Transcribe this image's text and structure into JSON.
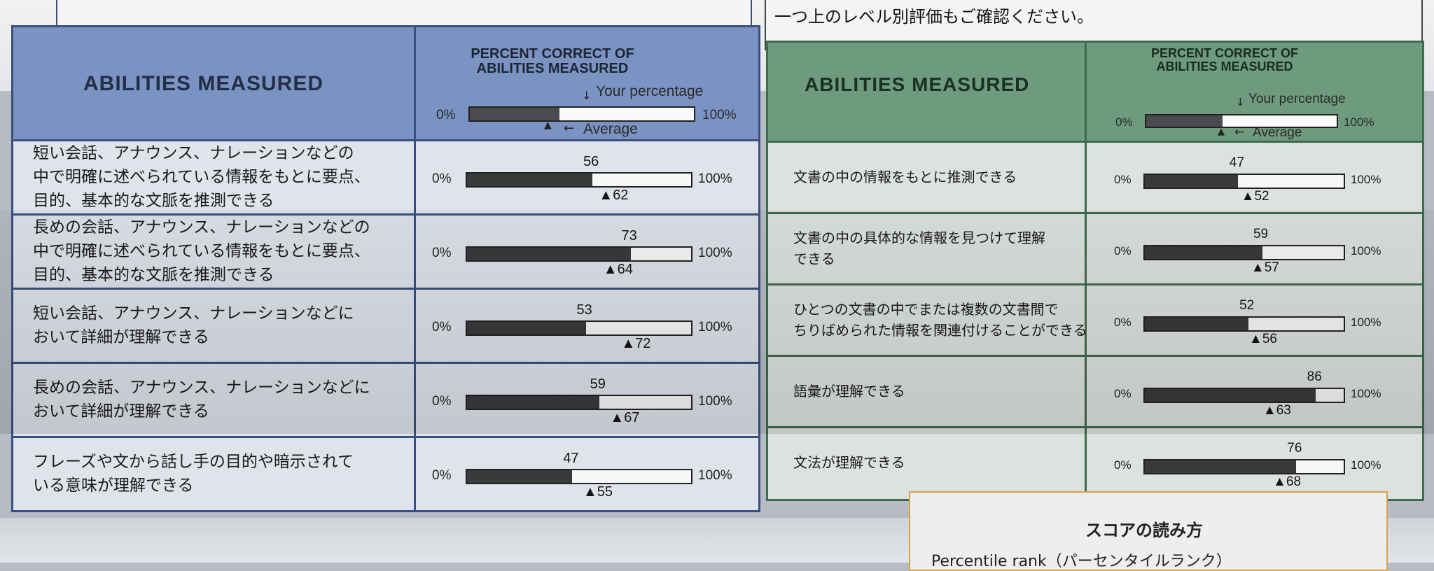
{
  "notice": "一つ上のレベル別評価もご確認ください。",
  "legend": {
    "zero": "0%",
    "hundred": "100%",
    "your_percentage": "Your percentage",
    "average": "Average"
  },
  "left": {
    "abilities_title": "ABILITIES MEASURED",
    "pct_title_1": "PERCENT CORRECT OF",
    "pct_title_2": "ABILITIES MEASURED",
    "rows": [
      {
        "lines": [
          "短い会話、アナウンス、ナレーションなどの",
          "中で明確に述べられている情報をもとに要点、",
          "目的、基本的な文脈を推測できる"
        ],
        "yours": 56,
        "average": 62
      },
      {
        "lines": [
          "長めの会話、アナウンス、ナレーションなどの",
          "中で明確に述べられている情報をもとに要点、",
          "目的、基本的な文脈を推測できる"
        ],
        "yours": 73,
        "average": 64
      },
      {
        "lines": [
          "短い会話、アナウンス、ナレーションなどに",
          "おいて詳細が理解できる"
        ],
        "yours": 53,
        "average": 72
      },
      {
        "lines": [
          "長めの会話、アナウンス、ナレーションなどに",
          "おいて詳細が理解できる"
        ],
        "yours": 59,
        "average": 67
      },
      {
        "lines": [
          "フレーズや文から話し手の目的や暗示されて",
          "いる意味が理解できる"
        ],
        "yours": 47,
        "average": 55
      }
    ]
  },
  "right": {
    "abilities_title": "ABILITIES MEASURED",
    "pct_title_1": "PERCENT CORRECT OF",
    "pct_title_2": "ABILITIES MEASURED",
    "rows": [
      {
        "lines": [
          "文書の中の情報をもとに推測できる"
        ],
        "yours": 47,
        "average": 52
      },
      {
        "lines": [
          "文書の中の具体的な情報を見つけて理解",
          "できる"
        ],
        "yours": 59,
        "average": 57
      },
      {
        "lines": [
          "ひとつの文書の中でまたは複数の文書間で",
          "ちりばめられた情報を関連付けることができる"
        ],
        "yours": 52,
        "average": 56
      },
      {
        "lines": [
          "語彙が理解できる"
        ],
        "yours": 86,
        "average": 63
      },
      {
        "lines": [
          "文法が理解できる"
        ],
        "yours": 76,
        "average": 68
      }
    ]
  },
  "score_box": {
    "title": "スコアの読み方",
    "line": "Percentile rank（パーセンタイルランク）"
  }
}
